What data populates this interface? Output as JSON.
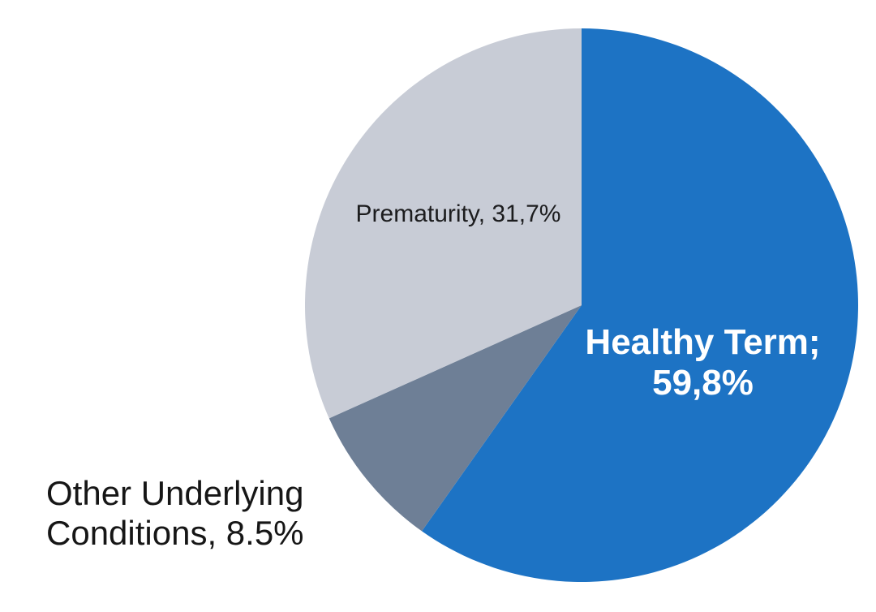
{
  "chart_data": {
    "type": "pie",
    "title": "",
    "slices": [
      {
        "name": "Healthy Term",
        "value": 59.8,
        "data_label": "Healthy Term; 59,8%",
        "color": "#1d73c4",
        "label_placement": "inside-right"
      },
      {
        "name": "Other Underlying Conditions",
        "value": 8.5,
        "data_label": "Other Underlying Conditions, 8.5%",
        "color": "#6e7f96",
        "label_placement": "outside-left"
      },
      {
        "name": "Prematurity",
        "value": 31.7,
        "data_label": "Prematurity, 31,7%",
        "color": "#c8ccd6",
        "label_placement": "inside-upper-left"
      }
    ],
    "start_angle_deg": 0,
    "direction": "clockwise",
    "legend_position": "none",
    "grid": false
  },
  "labels": {
    "healthy_term": {
      "line1": "Healthy Term;",
      "line2": "59,8%",
      "color": "#ffffff"
    },
    "prematurity": {
      "text": "Prematurity, 31,7%",
      "color": "#1c1c1e"
    },
    "other_conditions": {
      "line1": "Other Underlying",
      "line2": "Conditions, 8.5%",
      "color": "#161616"
    }
  },
  "background_color": "#ffffff"
}
